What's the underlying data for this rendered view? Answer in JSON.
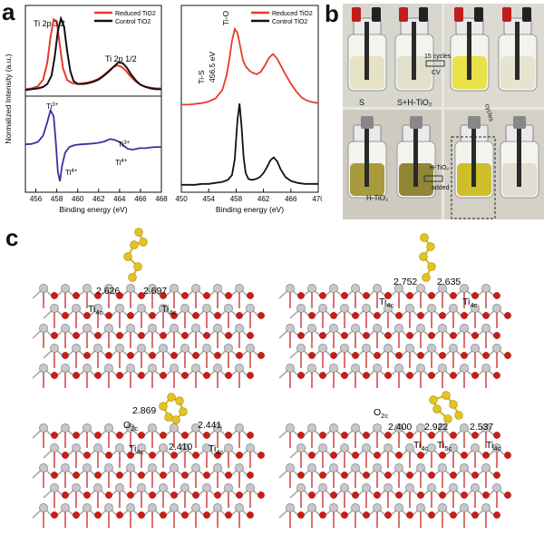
{
  "panels": {
    "a": "a",
    "b": "b",
    "c": "c"
  },
  "colors": {
    "reduced": "#e8392a",
    "control": "#111111",
    "difference": "#3b2fa0",
    "oxygen": "#d11a12",
    "titanium": "#c8c8cc",
    "sulfur": "#e6c41f"
  },
  "chart_data": [
    {
      "type": "line",
      "title": "",
      "xlabel": "Binding energy (eV)",
      "ylabel": "Normalized Intensity (a.u.)",
      "xlim": [
        455,
        468
      ],
      "x_reversed": false,
      "ticks_x": [
        "456",
        "458",
        "460",
        "462",
        "464",
        "466",
        "468"
      ],
      "legend": {
        "placement": "top-right",
        "entries": [
          "Reduced TiO2",
          "Control TiO2"
        ]
      },
      "annotations": [
        "Ti 2p 3/2",
        "Ti 2p 1/2"
      ],
      "series": [
        {
          "name": "Reduced TiO2",
          "color": "#e8392a",
          "x": [
            455.0,
            455.6,
            456.2,
            456.7,
            457.1,
            457.4,
            457.7,
            458.0,
            458.3,
            458.6,
            459.0,
            459.5,
            460.0,
            460.5,
            461.0,
            461.5,
            462.0,
            462.5,
            463.0,
            463.4,
            463.8,
            464.2,
            464.6,
            465.0,
            465.5,
            466.0,
            466.5,
            467.0,
            467.5,
            468.0
          ],
          "y": [
            0.02,
            0.03,
            0.06,
            0.15,
            0.38,
            0.72,
            0.96,
            0.93,
            0.6,
            0.3,
            0.14,
            0.1,
            0.09,
            0.1,
            0.11,
            0.13,
            0.16,
            0.21,
            0.27,
            0.32,
            0.34,
            0.32,
            0.27,
            0.2,
            0.13,
            0.08,
            0.05,
            0.04,
            0.03,
            0.03
          ]
        },
        {
          "name": "Control TiO2",
          "color": "#111111",
          "x": [
            455.0,
            455.6,
            456.2,
            456.7,
            457.1,
            457.5,
            457.8,
            458.1,
            458.4,
            458.7,
            459.0,
            459.3,
            459.6,
            460.0,
            460.5,
            461.0,
            461.5,
            462.0,
            462.5,
            463.0,
            463.5,
            463.9,
            464.3,
            464.7,
            465.1,
            465.6,
            466.0,
            466.5,
            467.0,
            467.5,
            468.0
          ],
          "y": [
            0.01,
            0.02,
            0.03,
            0.05,
            0.09,
            0.2,
            0.45,
            0.8,
            0.97,
            0.86,
            0.52,
            0.26,
            0.13,
            0.09,
            0.09,
            0.1,
            0.12,
            0.15,
            0.2,
            0.26,
            0.33,
            0.38,
            0.37,
            0.31,
            0.22,
            0.13,
            0.08,
            0.05,
            0.03,
            0.02,
            0.02
          ]
        }
      ]
    },
    {
      "type": "line",
      "title": "",
      "xlabel": "Binding energy (eV)",
      "ylabel": "",
      "xlim": [
        455,
        468
      ],
      "ticks_x": [
        "456",
        "458",
        "460",
        "462",
        "464",
        "466",
        "468"
      ],
      "annotations": [
        "Ti 3+",
        "Ti 4+",
        "Ti 3+",
        "Ti 4+"
      ],
      "series": [
        {
          "name": "",
          "color": "#3b2fa0",
          "x": [
            455.0,
            455.6,
            456.2,
            456.7,
            457.1,
            457.4,
            457.7,
            457.9,
            458.1,
            458.3,
            458.5,
            458.8,
            459.2,
            459.7,
            460.3,
            461.0,
            461.8,
            462.5,
            463.1,
            463.6,
            464.0,
            464.4,
            464.8,
            465.3,
            465.9,
            466.5,
            467.0,
            467.5,
            468.0
          ],
          "y": [
            0.02,
            0.03,
            0.08,
            0.25,
            0.6,
            0.92,
            0.75,
            0.1,
            -0.7,
            -0.95,
            -0.55,
            -0.2,
            -0.05,
            0.0,
            0.02,
            0.03,
            0.05,
            0.09,
            0.16,
            0.13,
            0.08,
            -0.02,
            -0.1,
            -0.12,
            -0.08,
            -0.08,
            -0.06,
            -0.05,
            -0.05
          ]
        }
      ]
    },
    {
      "type": "line",
      "title": "",
      "xlabel": "Binding energy (eV)",
      "ylabel": "",
      "xlim": [
        450,
        470
      ],
      "ticks_x": [
        "450",
        "454",
        "458",
        "462",
        "466",
        "470"
      ],
      "legend": {
        "placement": "top-right",
        "entries": [
          "Reduced TiO2",
          "Control TiO2"
        ]
      },
      "annotations": [
        "Ti-S 456.5 eV",
        "Ti-O"
      ],
      "series": [
        {
          "name": "Reduced TiO2",
          "color": "#e8392a",
          "x": [
            450.0,
            451.0,
            452.0,
            453.0,
            454.0,
            455.0,
            456.0,
            456.6,
            457.0,
            457.4,
            457.8,
            458.2,
            458.6,
            459.0,
            459.4,
            459.9,
            460.4,
            461.0,
            461.6,
            462.2,
            462.8,
            463.4,
            464.0,
            464.6,
            465.2,
            466.0,
            466.8,
            467.6,
            468.4,
            469.2,
            470.0
          ],
          "y": [
            0.03,
            0.03,
            0.04,
            0.05,
            0.07,
            0.11,
            0.22,
            0.4,
            0.6,
            0.85,
            1.0,
            0.95,
            0.78,
            0.6,
            0.52,
            0.47,
            0.44,
            0.42,
            0.45,
            0.53,
            0.63,
            0.68,
            0.62,
            0.52,
            0.42,
            0.3,
            0.2,
            0.12,
            0.08,
            0.06,
            0.05
          ]
        },
        {
          "name": "Control TiO2",
          "color": "#111111",
          "x": [
            450.0,
            451.0,
            452.0,
            453.0,
            454.0,
            455.0,
            456.0,
            456.8,
            457.4,
            457.8,
            458.2,
            458.5,
            458.8,
            459.1,
            459.4,
            459.8,
            460.3,
            460.9,
            461.5,
            462.0,
            462.5,
            463.0,
            463.5,
            464.0,
            464.5,
            465.2,
            466.0,
            467.0,
            468.0,
            469.0,
            470.0
          ],
          "y": [
            0.02,
            0.02,
            0.02,
            0.03,
            0.03,
            0.04,
            0.05,
            0.07,
            0.12,
            0.28,
            0.68,
            0.85,
            0.62,
            0.3,
            0.14,
            0.08,
            0.07,
            0.08,
            0.1,
            0.14,
            0.2,
            0.27,
            0.3,
            0.26,
            0.18,
            0.1,
            0.06,
            0.04,
            0.03,
            0.03,
            0.03
          ]
        }
      ]
    }
  ],
  "photos": {
    "labels": [
      "S",
      "S+H-TiO₂",
      "15 cycles",
      "CV",
      "H-TiO₂",
      "H-TiO₂",
      "added",
      "cycles"
    ]
  },
  "structures": [
    {
      "name": "top-left",
      "distances": [
        "2.626",
        "2.697"
      ],
      "atom_labels": [
        "Ti",
        "Ti"
      ],
      "subscripts": [
        "4c",
        "4c"
      ]
    },
    {
      "name": "top-right",
      "distances": [
        "2.752",
        "2.635"
      ],
      "atom_labels": [
        "Ti",
        "Ti"
      ],
      "subscripts": [
        "4c",
        "4c"
      ]
    },
    {
      "name": "bottom-left",
      "distances": [
        "2.869",
        "2.441",
        "2.410"
      ],
      "atom_labels": [
        "O",
        "Ti",
        "Ti"
      ],
      "subscripts": [
        "2c",
        "4c",
        "4c"
      ]
    },
    {
      "name": "bottom-right",
      "distances": [
        "2.400",
        "2.922",
        "2.537"
      ],
      "atom_labels": [
        "O",
        "Ti",
        "Ti",
        "Ti"
      ],
      "subscripts": [
        "2c",
        "4c",
        "5c",
        "4c"
      ]
    }
  ]
}
